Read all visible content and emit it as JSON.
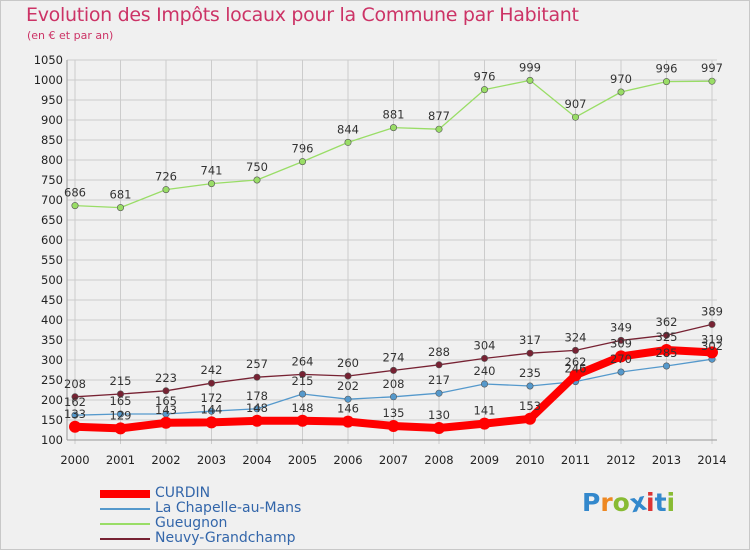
{
  "header": {
    "title": "Evolution des Impôts locaux pour la Commune par Habitant",
    "subtitle": "(en € et par an)"
  },
  "logo": {
    "text": "Proxiti"
  },
  "colors": {
    "title": "#cc3366",
    "grid": "#cccccc",
    "axis": "#999999"
  },
  "chart_data": {
    "type": "line",
    "title": "Evolution des Impôts locaux pour la Commune par Habitant",
    "subtitle": "(en € et par an)",
    "xlabel": "",
    "ylabel": "",
    "categories": [
      "2000",
      "2001",
      "2002",
      "2003",
      "2004",
      "2005",
      "2006",
      "2007",
      "2008",
      "2009",
      "2010",
      "2011",
      "2012",
      "2013",
      "2014"
    ],
    "y_ticks": [
      100,
      150,
      200,
      250,
      300,
      350,
      400,
      450,
      500,
      550,
      600,
      650,
      700,
      750,
      800,
      850,
      900,
      950,
      1000,
      1050
    ],
    "ylim": [
      100,
      1050
    ],
    "grid": true,
    "legend_position": "bottom-left",
    "series": [
      {
        "name": "CURDIN",
        "color": "#ff0000",
        "values": [
          133,
          129,
          143,
          144,
          148,
          148,
          146,
          135,
          130,
          141,
          153,
          262,
          309,
          325,
          319
        ],
        "labels": [
          "133",
          "129",
          "143",
          "144",
          "148",
          "148",
          "146",
          "135",
          "130",
          "141",
          "153",
          "262",
          "309",
          "325",
          "319"
        ]
      },
      {
        "name": "La Chapelle-au-Mans",
        "color": "#5599cc",
        "values": [
          162,
          165,
          165,
          172,
          178,
          215,
          202,
          208,
          217,
          240,
          235,
          246,
          270,
          285,
          302
        ],
        "labels": [
          "162",
          "165",
          "165",
          "172",
          "178",
          "215",
          "202",
          "208",
          "217",
          "240",
          "235",
          "246",
          "270",
          "285",
          "302"
        ]
      },
      {
        "name": "Gueugnon",
        "color": "#99dd66",
        "values": [
          686,
          681,
          726,
          741,
          750,
          796,
          844,
          881,
          877,
          976,
          999,
          907,
          970,
          996,
          997
        ],
        "labels": [
          "686",
          "681",
          "726",
          "741",
          "750",
          "796",
          "844",
          "881",
          "877",
          "976",
          "999",
          "907",
          "970",
          "996",
          "997"
        ]
      },
      {
        "name": "Neuvy-Grandchamp",
        "color": "#772233",
        "values": [
          208,
          215,
          223,
          242,
          257,
          264,
          260,
          274,
          288,
          304,
          317,
          324,
          349,
          362,
          389
        ],
        "labels": [
          "208",
          "215",
          "223",
          "242",
          "257",
          "264",
          "260",
          "274",
          "288",
          "304",
          "317",
          "324",
          "349",
          "362",
          "389"
        ]
      }
    ]
  }
}
